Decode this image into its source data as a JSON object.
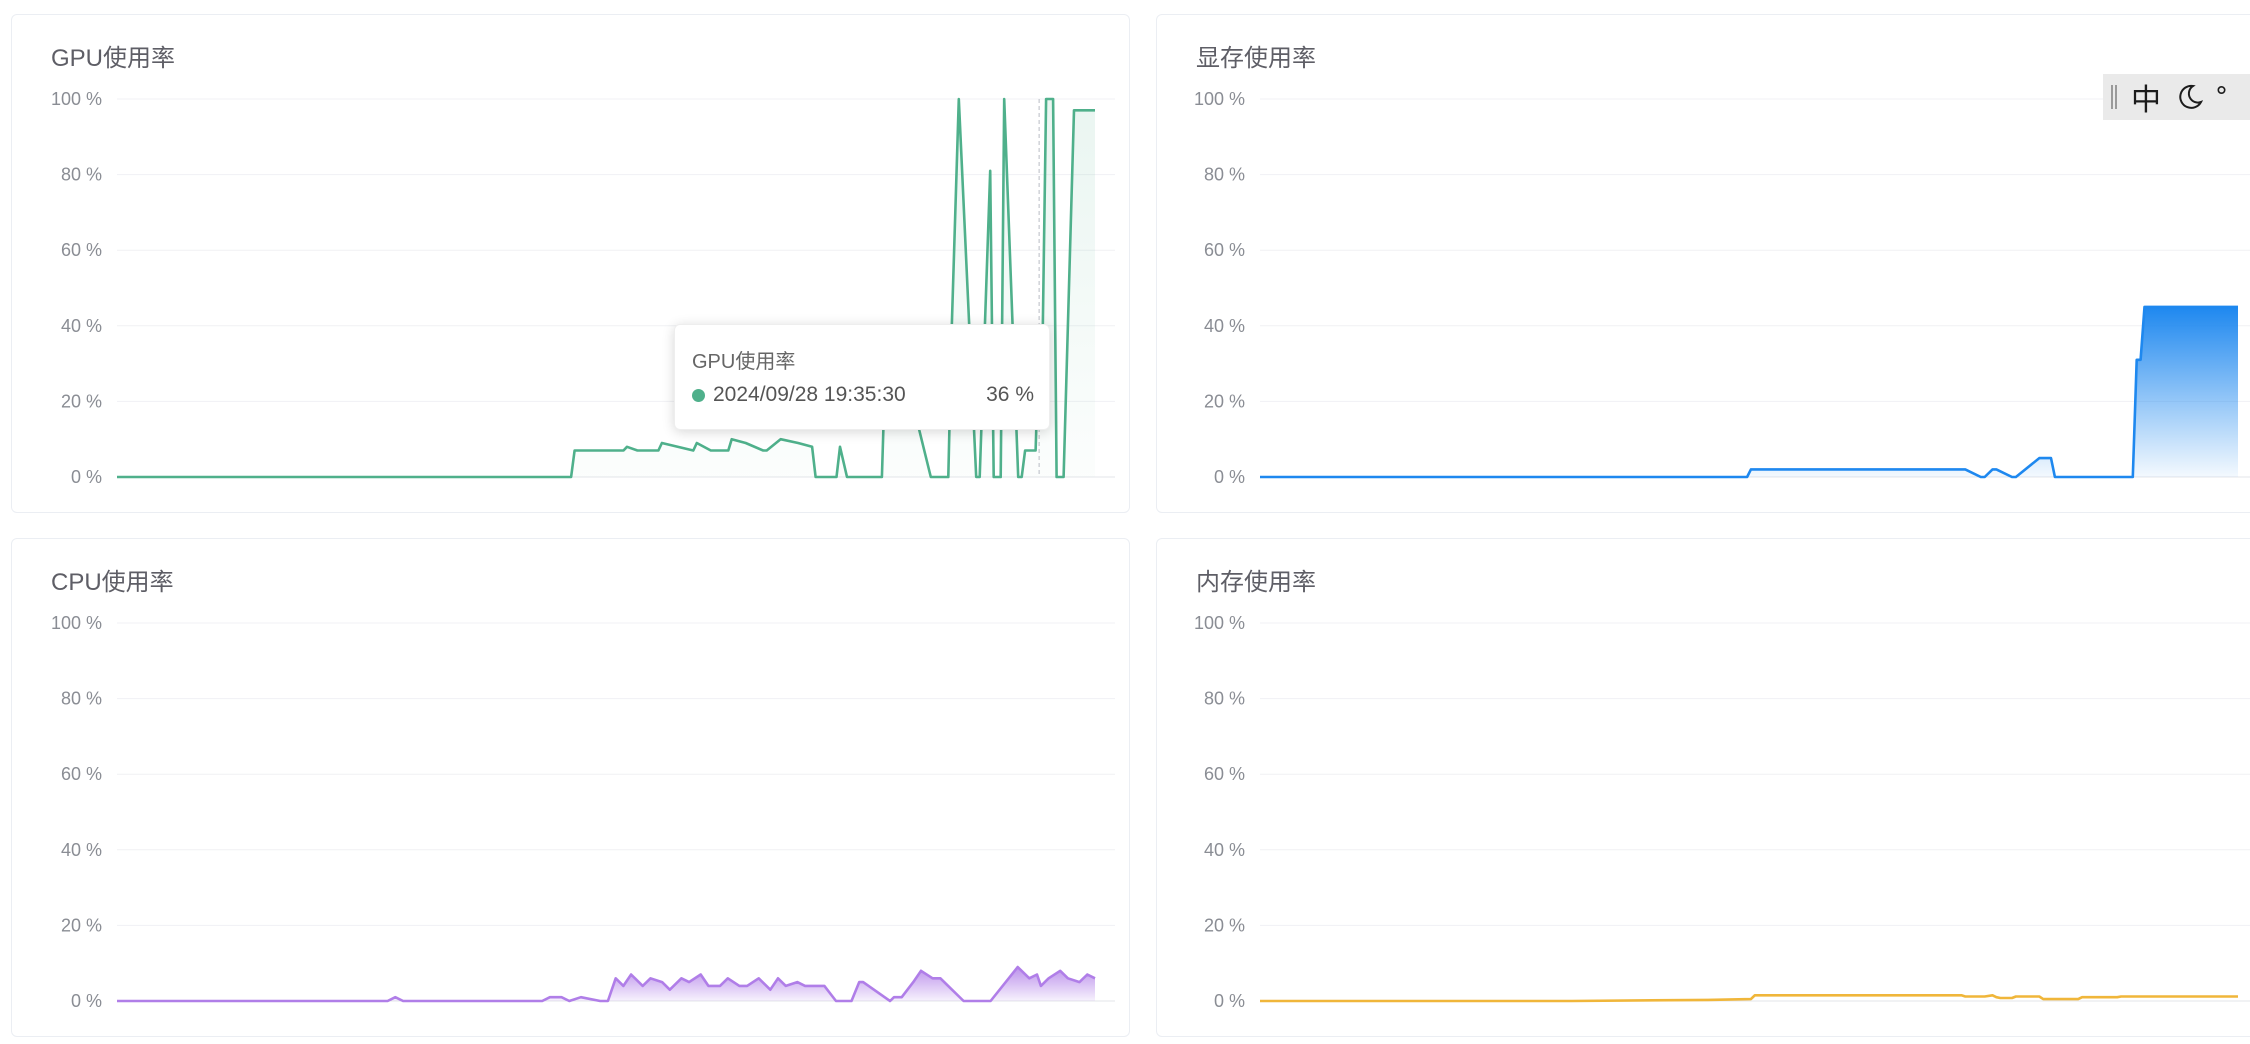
{
  "panels": [
    {
      "id": "gpu",
      "title": "GPU使用率",
      "color": "#4fb08b",
      "fill": "gradient-light"
    },
    {
      "id": "vram",
      "title": "显存使用率",
      "color": "#1e88ef",
      "fill": "gradient-strong"
    },
    {
      "id": "cpu",
      "title": "CPU使用率",
      "color": "#b07ee8",
      "fill": "gradient-medium"
    },
    {
      "id": "mem",
      "title": "内存使用率",
      "color": "#f0b63a",
      "fill": "none"
    }
  ],
  "tooltip": {
    "series": "GPU使用率",
    "time": "2024/09/28 19:35:30",
    "value": "36 %",
    "color": "#4fb08b"
  },
  "ime": {
    "mode": "中",
    "moon_icon": "moon-icon",
    "extra": "°"
  },
  "chart_data": [
    {
      "type": "area",
      "title": "GPU使用率",
      "y_ticks": [
        "0 %",
        "20 %",
        "40 %",
        "60 %",
        "80 %",
        "100 %"
      ],
      "ylim": [
        0,
        100
      ],
      "x": [
        0,
        130,
        131,
        145,
        146,
        149,
        155,
        156,
        165,
        166,
        170,
        175,
        176,
        180,
        185,
        186,
        190,
        195,
        199,
        200,
        206,
        207,
        209,
        210,
        219,
        220,
        223,
        225,
        233,
        234,
        235,
        238,
        239,
        241,
        246,
        247,
        250,
        251,
        253,
        254,
        258,
        259,
        260,
        263,
        264,
        265,
        266,
        268,
        269,
        270,
        271,
        274,
        275,
        276,
        278,
        279,
        280
      ],
      "values": [
        0,
        0,
        7,
        7,
        8,
        7,
        7,
        9,
        7,
        9,
        7,
        7,
        10,
        9,
        7,
        7,
        10,
        9,
        8,
        0,
        0,
        8,
        0,
        0,
        0,
        30,
        30,
        30,
        0,
        0,
        0,
        0,
        40,
        100,
        0,
        0,
        81,
        0,
        0,
        100,
        0,
        0,
        7,
        7,
        36,
        36,
        100,
        100,
        0,
        0,
        0,
        97,
        97,
        97,
        97,
        97,
        97
      ],
      "grid": true
    },
    {
      "type": "area",
      "title": "显存使用率",
      "y_ticks": [
        "0 %",
        "20 %",
        "40 %",
        "60 %",
        "80 %",
        "100 %"
      ],
      "ylim": [
        0,
        100
      ],
      "x": [
        0,
        125,
        126,
        180,
        181,
        185,
        186,
        188,
        189,
        193,
        194,
        200,
        201,
        203,
        204,
        224,
        225,
        226,
        227,
        230,
        231,
        251
      ],
      "values": [
        0,
        0,
        2,
        2,
        2,
        0,
        0,
        2,
        2,
        0,
        0,
        5,
        5,
        5,
        0,
        0,
        31,
        31,
        45,
        45,
        45,
        45
      ],
      "grid": true
    },
    {
      "type": "area",
      "title": "CPU使用率",
      "y_ticks": [
        "0 %",
        "20 %",
        "40 %",
        "60 %",
        "80 %",
        "100 %"
      ],
      "ylim": [
        0,
        100
      ],
      "x": [
        0,
        60,
        70,
        72,
        74,
        90,
        110,
        112,
        115,
        117,
        120,
        125,
        127,
        129,
        131,
        133,
        136,
        138,
        141,
        143,
        146,
        148,
        151,
        153,
        156,
        158,
        161,
        163,
        166,
        169,
        171,
        173,
        176,
        178,
        181,
        183,
        186,
        188,
        190,
        192,
        193,
        200,
        201,
        203,
        206,
        208,
        211,
        213,
        216,
        219,
        221,
        223,
        226,
        233,
        234,
        236,
        238,
        239,
        241,
        244,
        246,
        249,
        251,
        253
      ],
      "values": [
        0,
        0,
        0,
        1,
        0,
        0,
        0,
        1,
        1,
        0,
        1,
        0,
        0,
        6,
        4,
        7,
        4,
        6,
        5,
        3,
        6,
        5,
        7,
        4,
        4,
        6,
        4,
        4,
        6,
        3,
        6,
        4,
        5,
        4,
        4,
        4,
        0,
        0,
        0,
        5,
        5,
        0,
        1,
        1,
        5,
        8,
        6,
        6,
        3,
        0,
        0,
        0,
        0,
        9,
        8,
        6,
        7,
        4,
        6,
        8,
        6,
        5,
        7,
        6
      ],
      "grid": true
    },
    {
      "type": "line",
      "title": "内存使用率",
      "y_ticks": [
        "0 %",
        "20 %",
        "40 %",
        "60 %",
        "80 %",
        "100 %"
      ],
      "ylim": [
        0,
        100
      ],
      "x": [
        0,
        80,
        115,
        126,
        127,
        180,
        181,
        186,
        188,
        189,
        190,
        193,
        194,
        200,
        201,
        210,
        211,
        220,
        221,
        251
      ],
      "values": [
        0,
        0,
        0.3,
        0.5,
        1.5,
        1.5,
        1.2,
        1.2,
        1.5,
        1.0,
        0.8,
        0.8,
        1.2,
        1.2,
        0.5,
        0.5,
        1.0,
        1.0,
        1.2,
        1.2
      ],
      "grid": true
    }
  ]
}
